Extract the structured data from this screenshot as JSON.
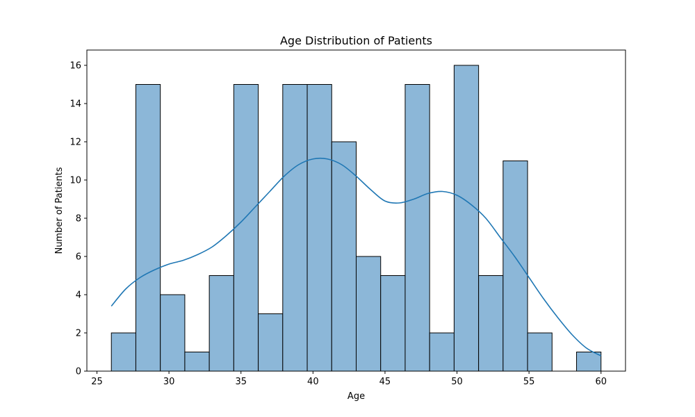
{
  "chart_data": {
    "type": "bar",
    "subtype": "histogram",
    "title": "Age Distribution of Patients",
    "xlabel": "Age",
    "ylabel": "Number of Patients",
    "xlim": [
      24.3,
      61.7
    ],
    "ylim": [
      0,
      16.8
    ],
    "xticks": [
      25,
      30,
      35,
      40,
      45,
      50,
      55,
      60
    ],
    "yticks": [
      0,
      2,
      4,
      6,
      8,
      10,
      12,
      14,
      16
    ],
    "grid": false,
    "bins": [
      {
        "x0": 26.0,
        "x1": 27.7,
        "count": 2
      },
      {
        "x0": 27.7,
        "x1": 29.4,
        "count": 15
      },
      {
        "x0": 29.4,
        "x1": 31.1,
        "count": 4
      },
      {
        "x0": 31.1,
        "x1": 32.8,
        "count": 1
      },
      {
        "x0": 32.8,
        "x1": 34.5,
        "count": 5
      },
      {
        "x0": 34.5,
        "x1": 36.2,
        "count": 15
      },
      {
        "x0": 36.2,
        "x1": 37.9,
        "count": 3
      },
      {
        "x0": 37.9,
        "x1": 39.6,
        "count": 15
      },
      {
        "x0": 39.6,
        "x1": 41.3,
        "count": 15
      },
      {
        "x0": 41.3,
        "x1": 43.0,
        "count": 12
      },
      {
        "x0": 43.0,
        "x1": 44.7,
        "count": 6
      },
      {
        "x0": 44.7,
        "x1": 46.4,
        "count": 5
      },
      {
        "x0": 46.4,
        "x1": 48.1,
        "count": 15
      },
      {
        "x0": 48.1,
        "x1": 49.8,
        "count": 2
      },
      {
        "x0": 49.8,
        "x1": 51.5,
        "count": 16
      },
      {
        "x0": 51.5,
        "x1": 53.2,
        "count": 5
      },
      {
        "x0": 53.2,
        "x1": 54.9,
        "count": 11
      },
      {
        "x0": 54.9,
        "x1": 56.6,
        "count": 2
      },
      {
        "x0": 56.6,
        "x1": 58.3,
        "count": 0
      },
      {
        "x0": 58.3,
        "x1": 60.0,
        "count": 1
      }
    ],
    "kde": {
      "x": [
        26,
        27,
        28,
        29,
        30,
        31,
        32,
        33,
        34,
        35,
        36,
        37,
        38,
        39,
        40,
        41,
        42,
        43,
        44,
        45,
        46,
        47,
        48,
        49,
        50,
        51,
        52,
        53,
        54,
        55,
        56,
        57,
        58,
        59,
        60
      ],
      "y": [
        3.4,
        4.3,
        4.9,
        5.3,
        5.6,
        5.8,
        6.1,
        6.5,
        7.1,
        7.8,
        8.6,
        9.4,
        10.2,
        10.8,
        11.1,
        11.1,
        10.8,
        10.2,
        9.5,
        8.9,
        8.8,
        9.0,
        9.3,
        9.4,
        9.2,
        8.7,
        8.0,
        7.0,
        6.0,
        4.9,
        3.8,
        2.8,
        1.9,
        1.2,
        0.8
      ]
    },
    "colors": {
      "bar_fill": "#8cb7d8",
      "bar_edge": "#000000",
      "kde_line": "#1f77b4"
    }
  }
}
